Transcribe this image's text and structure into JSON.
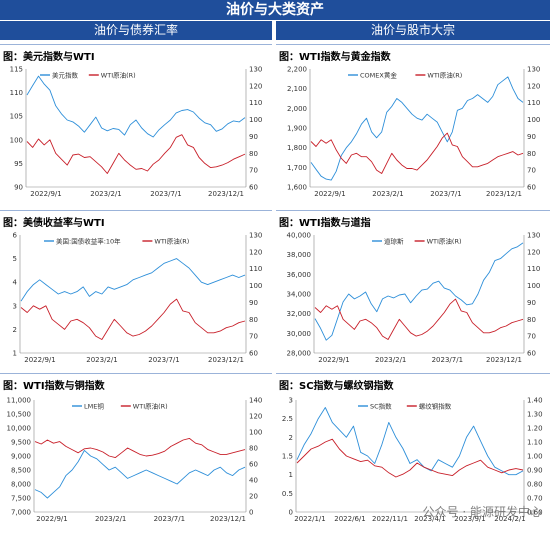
{
  "banner": "油价与大类资产",
  "col_left": "油价与债券汇率",
  "col_right": "油价与股市大宗",
  "watermark": "公众号 · 能源研发中心",
  "colors": {
    "blue": "#2e8fd9",
    "red": "#c8202a",
    "navy": "#1f4e9b"
  },
  "chart_data": [
    {
      "type": "line",
      "title": "图：美元指数与WTI",
      "x_labels": [
        "2022/9/1",
        "2023/2/1",
        "2023/7/1",
        "2023/12/1"
      ],
      "y_left": {
        "ticks": [
          "115",
          "110",
          "105",
          "100",
          "95",
          "90"
        ],
        "lim": [
          90,
          115
        ]
      },
      "y_right": {
        "ticks": [
          "130",
          "120",
          "110",
          "100",
          "90",
          "80",
          "70",
          "60"
        ],
        "lim": [
          60,
          130
        ]
      },
      "series": [
        {
          "name": "美元指数",
          "axis": "left",
          "color": "#2e8fd9",
          "values": [
            109.5,
            111.5,
            113.5,
            111.8,
            110.5,
            107.2,
            105.5,
            104.2,
            103.8,
            102.9,
            101.6,
            103.2,
            104.8,
            102.5,
            101.9,
            102.4,
            102.2,
            101.0,
            103.2,
            104.2,
            102.5,
            101.3,
            100.6,
            102.1,
            103.2,
            104.2,
            105.7,
            106.2,
            106.4,
            105.9,
            104.6,
            103.6,
            103.2,
            101.8,
            102.3,
            103.4,
            104.0,
            103.8,
            104.7
          ]
        },
        {
          "name": "WTI原油(R)",
          "axis": "right",
          "color": "#c8202a",
          "values": [
            87.0,
            83.5,
            88.5,
            85.0,
            88.0,
            80.0,
            76.5,
            73.0,
            79.0,
            79.5,
            77.5,
            78.0,
            75.0,
            72.0,
            68.0,
            74.0,
            80.0,
            76.0,
            73.0,
            70.5,
            71.0,
            69.5,
            73.5,
            76.0,
            80.0,
            83.5,
            89.5,
            91.0,
            85.0,
            83.5,
            77.5,
            74.0,
            71.5,
            72.0,
            73.0,
            74.5,
            76.5,
            78.0,
            79.5
          ]
        }
      ]
    },
    {
      "type": "line",
      "title": "图：WTI指数与黄金指数",
      "x_labels": [
        "2022/9/1",
        "2023/2/1",
        "2023/7/1",
        "2023/12/1"
      ],
      "y_left": {
        "ticks": [
          "2,200",
          "2,100",
          "2,000",
          "1,900",
          "1,800",
          "1,700",
          "1,600"
        ],
        "lim": [
          1600,
          2200
        ]
      },
      "y_right": {
        "ticks": [
          "130",
          "120",
          "110",
          "100",
          "90",
          "80",
          "70",
          "60"
        ],
        "lim": [
          60,
          130
        ]
      },
      "series": [
        {
          "name": "COMEX黄金",
          "axis": "left",
          "color": "#2e8fd9",
          "values": [
            1725,
            1690,
            1655,
            1640,
            1635,
            1680,
            1760,
            1800,
            1830,
            1870,
            1920,
            1950,
            1880,
            1850,
            1880,
            1980,
            2010,
            2050,
            2030,
            2000,
            1970,
            1950,
            1940,
            1970,
            1950,
            1930,
            1880,
            1830,
            1880,
            1990,
            2000,
            2040,
            2050,
            2070,
            2050,
            2030,
            2060,
            2120,
            2140,
            2160,
            2100,
            2050,
            2030
          ]
        },
        {
          "name": "WTI原油(R)",
          "axis": "right",
          "color": "#c8202a",
          "values": [
            87,
            84,
            88,
            86,
            88,
            82,
            77,
            74,
            79,
            80,
            78,
            78,
            75,
            70,
            68,
            74,
            80,
            76,
            73,
            71,
            71,
            70,
            73,
            76,
            80,
            84,
            89,
            92,
            85,
            84,
            78,
            75,
            72,
            72,
            73,
            74,
            76,
            78,
            79,
            80,
            81,
            79,
            80
          ]
        }
      ]
    },
    {
      "type": "line",
      "title": "图：美债收益率与WTI",
      "x_labels": [
        "2022/9/1",
        "2023/2/1",
        "2023/7/1",
        "2023/12/1"
      ],
      "y_left": {
        "ticks": [
          "6",
          "5",
          "4",
          "3",
          "2",
          "1"
        ],
        "lim": [
          1,
          6
        ]
      },
      "y_right": {
        "ticks": [
          "130",
          "120",
          "110",
          "100",
          "90",
          "80",
          "70",
          "60"
        ],
        "lim": [
          60,
          130
        ]
      },
      "series": [
        {
          "name": "美国:国债收益率:10年",
          "axis": "left",
          "color": "#2e8fd9",
          "values": [
            3.2,
            3.6,
            3.9,
            4.1,
            3.9,
            3.7,
            3.5,
            3.6,
            3.5,
            3.6,
            3.8,
            3.4,
            3.6,
            3.5,
            3.8,
            3.7,
            3.8,
            3.9,
            4.1,
            4.2,
            4.3,
            4.4,
            4.6,
            4.8,
            4.9,
            5.0,
            4.8,
            4.6,
            4.3,
            4.0,
            3.9,
            4.0,
            4.1,
            4.2,
            4.3,
            4.2,
            4.3
          ]
        },
        {
          "name": "WTI原油(R)",
          "axis": "right",
          "color": "#c8202a",
          "values": [
            87,
            84,
            88,
            86,
            88,
            80,
            77,
            74,
            79,
            80,
            78,
            75,
            70,
            68,
            74,
            80,
            76,
            72,
            70,
            71,
            73,
            76,
            80,
            84,
            89,
            92,
            85,
            84,
            78,
            75,
            72,
            72,
            73,
            75,
            76,
            78,
            79
          ]
        }
      ]
    },
    {
      "type": "line",
      "title": "图：WTI指数与道指",
      "x_labels": [
        "2022/9/1",
        "2023/2/1",
        "2023/7/1",
        "2023/12/1"
      ],
      "y_left": {
        "ticks": [
          "40,000",
          "38,000",
          "36,000",
          "34,000",
          "32,000",
          "30,000",
          "28,000"
        ],
        "lim": [
          28000,
          40000
        ]
      },
      "y_right": {
        "ticks": [
          "130",
          "120",
          "110",
          "100",
          "90",
          "80",
          "70",
          "60"
        ],
        "lim": [
          60,
          130
        ]
      },
      "series": [
        {
          "name": "道琼斯",
          "axis": "left",
          "color": "#2e8fd9",
          "values": [
            31500,
            30500,
            29300,
            29800,
            31500,
            33200,
            34000,
            33500,
            33800,
            34200,
            33000,
            32200,
            33500,
            33800,
            33600,
            33900,
            34000,
            33100,
            33800,
            34400,
            34500,
            35100,
            35300,
            34600,
            34400,
            33800,
            33400,
            32900,
            33000,
            34000,
            35400,
            36200,
            37400,
            37600,
            38100,
            38600,
            38800,
            39200
          ]
        },
        {
          "name": "WTI原油(R)",
          "axis": "right",
          "color": "#c8202a",
          "values": [
            87,
            84,
            88,
            86,
            88,
            80,
            77,
            74,
            79,
            80,
            78,
            75,
            70,
            68,
            74,
            80,
            76,
            72,
            70,
            71,
            73,
            76,
            80,
            84,
            89,
            92,
            85,
            84,
            78,
            75,
            72,
            72,
            73,
            75,
            76,
            78,
            79,
            80
          ]
        }
      ]
    },
    {
      "type": "line",
      "title": "图：WTI指数与铜指数",
      "x_labels": [
        "2022/9/1",
        "2023/2/1",
        "2023/7/1",
        "2023/12/1"
      ],
      "y_left": {
        "ticks": [
          "11,000",
          "10,500",
          "10,000",
          "9,500",
          "9,000",
          "8,500",
          "8,000",
          "7,500",
          "7,000"
        ],
        "lim": [
          7000,
          11000
        ]
      },
      "y_right": {
        "ticks": [
          "140",
          "120",
          "100",
          "80",
          "60",
          "40",
          "20",
          "0"
        ],
        "lim": [
          0,
          140
        ]
      },
      "series": [
        {
          "name": "LME铜",
          "axis": "left",
          "color": "#2e8fd9",
          "values": [
            7800,
            7700,
            7500,
            7700,
            7900,
            8300,
            8500,
            8800,
            9200,
            9000,
            8900,
            8700,
            8500,
            8600,
            8400,
            8200,
            8300,
            8400,
            8500,
            8400,
            8300,
            8200,
            8100,
            8000,
            8200,
            8400,
            8500,
            8400,
            8300,
            8500,
            8600,
            8400,
            8300,
            8500,
            8600
          ]
        },
        {
          "name": "WTI原油(R)",
          "axis": "right",
          "color": "#c8202a",
          "values": [
            88,
            85,
            90,
            86,
            88,
            82,
            78,
            74,
            79,
            80,
            78,
            75,
            70,
            68,
            74,
            80,
            76,
            72,
            70,
            71,
            73,
            76,
            82,
            86,
            90,
            92,
            86,
            84,
            78,
            75,
            72,
            72,
            74,
            76,
            78
          ]
        }
      ]
    },
    {
      "type": "line",
      "title": "图：SC指数与螺纹钢指数",
      "x_labels": [
        "2022/1/1",
        "2022/6/1",
        "2022/11/1",
        "2023/4/1",
        "2023/9/1",
        "2024/2/1"
      ],
      "y_left": {
        "ticks": [
          "3",
          "2.5",
          "2",
          "1.5",
          "1",
          "0.5",
          "0"
        ],
        "lim": [
          0,
          3
        ]
      },
      "y_right": {
        "ticks": [
          "1.40",
          "1.30",
          "1.20",
          "1.10",
          "1.00",
          "0.90",
          "0.80",
          "0.70",
          "0.60"
        ],
        "lim": [
          0.6,
          1.4
        ]
      },
      "series": [
        {
          "name": "SC指数",
          "axis": "left",
          "color": "#2e8fd9",
          "values": [
            1.4,
            1.8,
            2.1,
            2.5,
            2.8,
            2.4,
            2.2,
            2.0,
            2.3,
            1.6,
            1.5,
            1.3,
            1.8,
            2.4,
            2.0,
            1.7,
            1.3,
            1.4,
            1.2,
            1.1,
            1.4,
            1.3,
            1.2,
            1.5,
            2.0,
            2.3,
            1.9,
            1.5,
            1.2,
            1.1,
            1.0,
            1.0,
            1.1
          ]
        },
        {
          "name": "螺纹钢指数",
          "axis": "right",
          "color": "#c8202a",
          "values": [
            0.95,
            1.0,
            1.05,
            1.07,
            1.1,
            1.12,
            1.05,
            1.0,
            0.98,
            0.96,
            0.97,
            0.93,
            0.92,
            0.88,
            0.85,
            0.87,
            0.9,
            0.95,
            0.92,
            0.9,
            0.88,
            0.87,
            0.86,
            0.9,
            0.93,
            0.95,
            0.97,
            0.92,
            0.9,
            0.88,
            0.9,
            0.91,
            0.9
          ]
        }
      ]
    }
  ]
}
